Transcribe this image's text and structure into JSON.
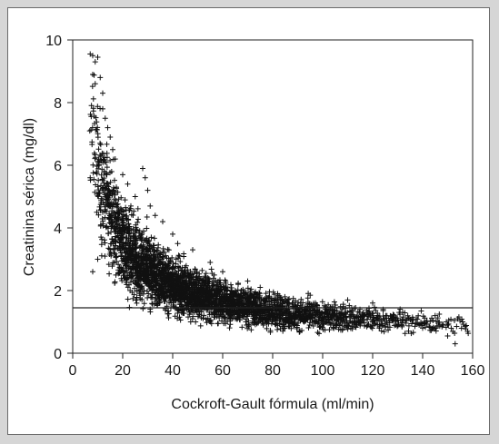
{
  "chart_data": {
    "type": "scatter",
    "title": "",
    "xlabel": "Cockroft-Gault fórmula (ml/min)",
    "ylabel": "Creatinina sérica (mg/dl)",
    "xlim": [
      0,
      160
    ],
    "ylim": [
      0,
      10
    ],
    "xticks": [
      0,
      20,
      40,
      60,
      80,
      100,
      120,
      140,
      160
    ],
    "yticks": [
      0,
      2,
      4,
      6,
      8,
      10
    ],
    "marker": "plus",
    "marker_color": "#111111",
    "reference_line": {
      "y": 1.45,
      "orientation": "horizontal"
    },
    "grid": false,
    "legend": "none",
    "density_profile": [
      {
        "x": 7,
        "y_center": 7.5,
        "y_spread": 1.9,
        "weight": 0.4
      },
      {
        "x": 10,
        "y_center": 6.0,
        "y_spread": 2.0,
        "weight": 1.0
      },
      {
        "x": 13,
        "y_center": 4.8,
        "y_spread": 1.8,
        "weight": 1.6
      },
      {
        "x": 17,
        "y_center": 4.0,
        "y_spread": 1.5,
        "weight": 2.0
      },
      {
        "x": 22,
        "y_center": 3.3,
        "y_spread": 1.3,
        "weight": 2.4
      },
      {
        "x": 28,
        "y_center": 2.8,
        "y_spread": 1.1,
        "weight": 2.6
      },
      {
        "x": 35,
        "y_center": 2.4,
        "y_spread": 0.95,
        "weight": 2.6
      },
      {
        "x": 45,
        "y_center": 2.0,
        "y_spread": 0.8,
        "weight": 2.4
      },
      {
        "x": 55,
        "y_center": 1.75,
        "y_spread": 0.7,
        "weight": 2.0
      },
      {
        "x": 65,
        "y_center": 1.55,
        "y_spread": 0.6,
        "weight": 1.7
      },
      {
        "x": 75,
        "y_center": 1.4,
        "y_spread": 0.55,
        "weight": 1.4
      },
      {
        "x": 85,
        "y_center": 1.3,
        "y_spread": 0.5,
        "weight": 1.1
      },
      {
        "x": 95,
        "y_center": 1.2,
        "y_spread": 0.45,
        "weight": 0.9
      },
      {
        "x": 105,
        "y_center": 1.15,
        "y_spread": 0.42,
        "weight": 0.7
      },
      {
        "x": 115,
        "y_center": 1.1,
        "y_spread": 0.4,
        "weight": 0.5
      },
      {
        "x": 125,
        "y_center": 1.05,
        "y_spread": 0.35,
        "weight": 0.35
      },
      {
        "x": 135,
        "y_center": 1.0,
        "y_spread": 0.33,
        "weight": 0.25
      },
      {
        "x": 145,
        "y_center": 0.95,
        "y_spread": 0.3,
        "weight": 0.18
      },
      {
        "x": 155,
        "y_center": 0.9,
        "y_spread": 0.28,
        "weight": 0.12
      }
    ],
    "outliers": [
      [
        7,
        9.55
      ],
      [
        8,
        9.5
      ],
      [
        9,
        9.3
      ],
      [
        10,
        9.45
      ],
      [
        8,
        8.9
      ],
      [
        9,
        8.6
      ],
      [
        11,
        8.8
      ],
      [
        12,
        8.3
      ],
      [
        12,
        7.8
      ],
      [
        13,
        7.5
      ],
      [
        14,
        7.2
      ],
      [
        15,
        6.9
      ],
      [
        16,
        6.5
      ],
      [
        17,
        6.2
      ],
      [
        20,
        5.7
      ],
      [
        22,
        5.4
      ],
      [
        25,
        5.0
      ],
      [
        28,
        5.9
      ],
      [
        29,
        5.6
      ],
      [
        30,
        5.2
      ],
      [
        31,
        4.7
      ],
      [
        33,
        4.4
      ],
      [
        36,
        4.2
      ],
      [
        40,
        3.8
      ],
      [
        42,
        3.5
      ],
      [
        48,
        3.3
      ],
      [
        55,
        2.9
      ],
      [
        60,
        2.6
      ],
      [
        70,
        2.3
      ],
      [
        75,
        2.1
      ],
      [
        82,
        1.9
      ],
      [
        95,
        1.85
      ],
      [
        110,
        1.7
      ],
      [
        120,
        1.6
      ],
      [
        132,
        1.3
      ],
      [
        145,
        1.2
      ],
      [
        156,
        1.0
      ],
      [
        153,
        0.3
      ],
      [
        150,
        0.55
      ],
      [
        158,
        0.7
      ],
      [
        8,
        2.6
      ],
      [
        10,
        3.0
      ],
      [
        7,
        5.6
      ],
      [
        150,
        0.9
      ],
      [
        140,
        0.8
      ],
      [
        157,
        0.85
      ]
    ]
  }
}
